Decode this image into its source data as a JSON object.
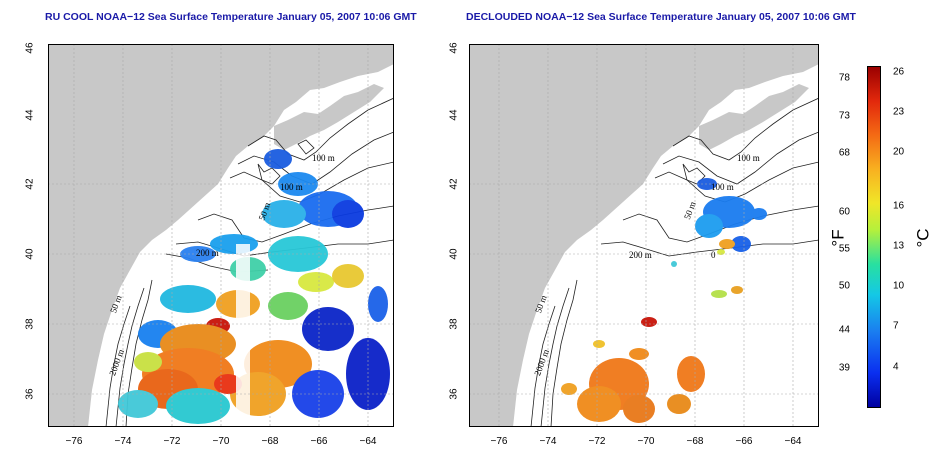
{
  "titles": {
    "left": "RU COOL NOAA−12 Sea Surface Temperature January 05, 2007 10:06 GMT",
    "right": "DECLOUDED NOAA−12 Sea Surface Temperature January 05, 2007 10:06 GMT"
  },
  "axes": {
    "x_ticks": [
      "−76",
      "−74",
      "−72",
      "−70",
      "−68",
      "−66",
      "−64"
    ],
    "y_ticks": [
      "36",
      "38",
      "40",
      "42",
      "44",
      "46"
    ]
  },
  "contour_labels": {
    "l100a": "100 m",
    "l100b": "100 m",
    "l50a": "50 m",
    "l200": "200 m",
    "l50b": "50 m",
    "l2000": "2000 m",
    "l0": "0"
  },
  "colorbar": {
    "fahrenheit_ticks": [
      "78",
      "73",
      "68",
      "60",
      "55",
      "50",
      "44",
      "39"
    ],
    "celsius_ticks": [
      "26",
      "23",
      "20",
      "16",
      "13",
      "10",
      "7",
      "4"
    ],
    "fahrenheit_unit": "°F",
    "celsius_unit": "°C"
  },
  "colors": {
    "land": "#c8c8c8",
    "title": "#1a1aa8",
    "contour": "#222222"
  }
}
